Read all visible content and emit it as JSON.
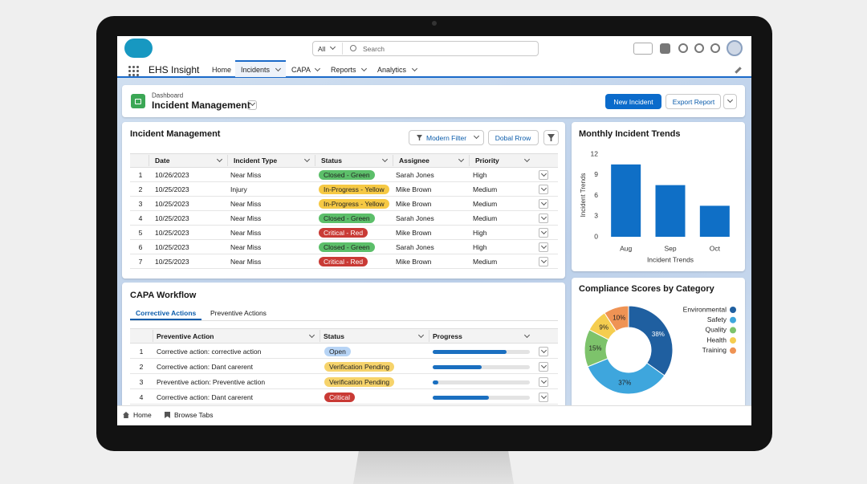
{
  "nav": {
    "search_scope": "All",
    "search_placeholder": "Search",
    "app_name": "EHS Insight",
    "tabs": [
      "Home",
      "Incidents",
      "CAPA",
      "Reports",
      "Analytics"
    ]
  },
  "page_header": {
    "object": "Dashboard",
    "title": "Incident Management",
    "buttons": [
      "New Incident",
      "Export Report"
    ]
  },
  "incidents": {
    "title": "Incident Management",
    "buttons": [
      "Modern Filter",
      "Dobal Rrow"
    ],
    "columns": [
      "Date",
      "Incident Type",
      "Status",
      "Assignee",
      "Priority"
    ],
    "rows": [
      [
        "1",
        "10/26/2023",
        "Near Miss",
        "Closed - Green",
        "Sarah Jones",
        "High"
      ],
      [
        "2",
        "10/25/2023",
        "Injury",
        "In-Progress - Yellow",
        "Mike Brown",
        "Medium"
      ],
      [
        "3",
        "10/25/2023",
        "Near Miss",
        "In-Progress - Yellow",
        "Mike Brown",
        "Medium"
      ],
      [
        "4",
        "10/25/2023",
        "Near Miss",
        "Closed - Green",
        "Sarah Jones",
        "Medium"
      ],
      [
        "5",
        "10/25/2023",
        "Near Miss",
        "Critical - Red",
        "Mike Brown",
        "High"
      ],
      [
        "6",
        "10/25/2023",
        "Near Miss",
        "Closed - Green",
        "Sarah Jones",
        "High"
      ],
      [
        "7",
        "10/25/2023",
        "Near Miss",
        "Critical - Red",
        "Mike Brown",
        "Medium"
      ]
    ],
    "status_colors": [
      "#5cbf6a",
      "#f6c944",
      "#f6c944",
      "#5cbf6a",
      "#c93a35",
      "#5cbf6a",
      "#c93a35"
    ]
  },
  "capa": {
    "title": "CAPA Workflow",
    "tabs": [
      "Corrective Actions",
      "Preventive Actions"
    ],
    "columns": [
      "Preventive Action",
      "Status",
      "Progress"
    ],
    "progress_lim": [
      0,
      100
    ],
    "progress_color": "#1a6fc0",
    "rows": [
      {
        "index": "1",
        "action": "Corrective action: corrective action",
        "status": "Open",
        "status_color": "#b7d4f5",
        "progress": 76
      },
      {
        "index": "2",
        "action": "Corrective action: Dant carerent",
        "status": "Verification Pending",
        "status_color": "#f6d36b",
        "progress": 50
      },
      {
        "index": "3",
        "action": "Preventive action: Preventive action",
        "status": "Verification Pending",
        "status_color": "#f6d36b",
        "progress": 6
      },
      {
        "index": "4",
        "action": "Corrective action: Dant carerent",
        "status": "Critical",
        "status_color": "#c93a35",
        "progress": 58
      }
    ]
  },
  "chart_data": [
    {
      "type": "bar",
      "title": "Monthly Incident Trends",
      "y_label": "Incident Trends",
      "x_label": "Incident Trends",
      "categories": [
        "Aug",
        "Sep",
        "Oct"
      ],
      "values": [
        10.5,
        7.5,
        4.5
      ],
      "color": "#0f6fc6",
      "ylim": [
        0,
        12
      ],
      "yticks": [
        0,
        3,
        6,
        9,
        12
      ],
      "grid": false
    },
    {
      "type": "pie",
      "title": "Compliance Scores by Category",
      "donut": true,
      "categories": [
        "Environmental",
        "Safety",
        "Quality",
        "Health",
        "Training"
      ],
      "values": [
        38,
        37,
        15,
        9,
        10
      ],
      "value_labels": [
        "38%",
        "37%",
        "15%",
        "9%",
        "10%"
      ],
      "colors": [
        "#1f5fa0",
        "#3ea6dd",
        "#7dc36b",
        "#f5cd4f",
        "#ef9354"
      ],
      "legend": "right"
    }
  ],
  "footer": {
    "items": [
      "Home",
      "Browse Tabs"
    ]
  }
}
